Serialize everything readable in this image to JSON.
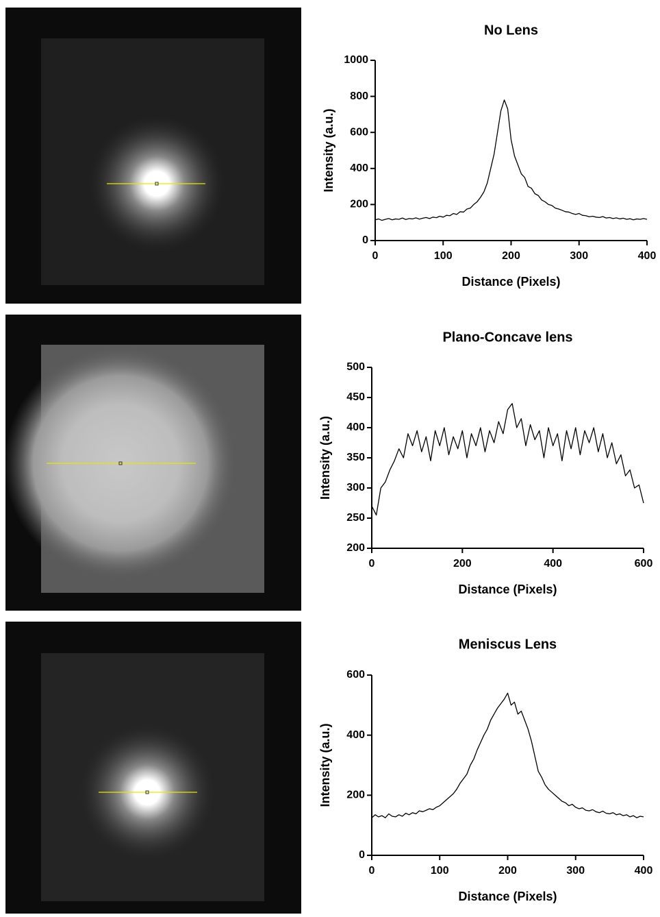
{
  "chart_data": [
    {
      "type": "line",
      "title": "No Lens",
      "x_label": "Distance (Pixels)",
      "y_label": "Intensity (a.u.)",
      "xlim": [
        0,
        400
      ],
      "ylim": [
        0,
        1000
      ],
      "xticks": [
        0,
        100,
        200,
        300,
        400
      ],
      "yticks": [
        0,
        200,
        400,
        600,
        800,
        1000
      ],
      "color": "#000000",
      "x": [
        0,
        5,
        10,
        15,
        20,
        25,
        30,
        35,
        40,
        45,
        50,
        55,
        60,
        65,
        70,
        75,
        80,
        85,
        90,
        95,
        100,
        105,
        110,
        115,
        120,
        125,
        130,
        135,
        140,
        145,
        150,
        155,
        160,
        165,
        170,
        175,
        180,
        185,
        190,
        195,
        200,
        205,
        210,
        215,
        220,
        225,
        230,
        235,
        240,
        245,
        250,
        255,
        260,
        265,
        270,
        275,
        280,
        285,
        290,
        295,
        300,
        305,
        310,
        315,
        320,
        325,
        330,
        335,
        340,
        345,
        350,
        355,
        360,
        365,
        370,
        375,
        380,
        385,
        390,
        395,
        400
      ],
      "values": [
        115,
        120,
        112,
        118,
        122,
        115,
        120,
        118,
        125,
        117,
        122,
        120,
        126,
        119,
        124,
        128,
        122,
        130,
        127,
        135,
        130,
        140,
        138,
        150,
        145,
        160,
        158,
        175,
        180,
        200,
        215,
        240,
        270,
        320,
        400,
        480,
        600,
        720,
        780,
        730,
        560,
        470,
        420,
        370,
        350,
        300,
        290,
        260,
        250,
        225,
        215,
        200,
        195,
        180,
        175,
        168,
        160,
        158,
        150,
        145,
        150,
        140,
        138,
        132,
        135,
        130,
        128,
        133,
        125,
        128,
        122,
        126,
        120,
        124,
        118,
        121,
        115,
        120,
        118,
        122,
        118
      ]
    },
    {
      "type": "line",
      "title": "Plano-Concave lens",
      "x_label": "Distance (Pixels)",
      "y_label": "Intensity (a.u.)",
      "xlim": [
        0,
        600
      ],
      "ylim": [
        200,
        500
      ],
      "xticks": [
        0,
        200,
        400,
        600
      ],
      "yticks": [
        200,
        250,
        300,
        350,
        400,
        450,
        500
      ],
      "color": "#000000",
      "x": [
        0,
        10,
        20,
        30,
        40,
        50,
        60,
        70,
        80,
        90,
        100,
        110,
        120,
        130,
        140,
        150,
        160,
        170,
        180,
        190,
        200,
        210,
        220,
        230,
        240,
        250,
        260,
        270,
        280,
        290,
        300,
        310,
        320,
        330,
        340,
        350,
        360,
        370,
        380,
        390,
        400,
        410,
        420,
        430,
        440,
        450,
        460,
        470,
        480,
        490,
        500,
        510,
        520,
        530,
        540,
        550,
        560,
        570,
        580,
        590,
        600
      ],
      "values": [
        270,
        255,
        300,
        310,
        330,
        345,
        365,
        350,
        390,
        370,
        395,
        360,
        385,
        345,
        395,
        370,
        400,
        355,
        385,
        365,
        395,
        350,
        390,
        370,
        400,
        360,
        395,
        375,
        410,
        390,
        430,
        440,
        400,
        415,
        370,
        405,
        380,
        395,
        350,
        400,
        370,
        390,
        345,
        395,
        365,
        400,
        355,
        395,
        375,
        400,
        360,
        390,
        350,
        375,
        340,
        355,
        320,
        330,
        300,
        305,
        275
      ]
    },
    {
      "type": "line",
      "title": "Meniscus Lens",
      "x_label": "Distance (Pixels)",
      "y_label": "Intensity (a.u.)",
      "xlim": [
        0,
        400
      ],
      "ylim": [
        0,
        600
      ],
      "xticks": [
        0,
        100,
        200,
        300,
        400
      ],
      "yticks": [
        0,
        200,
        400,
        600
      ],
      "color": "#000000",
      "x": [
        0,
        5,
        10,
        15,
        20,
        25,
        30,
        35,
        40,
        45,
        50,
        55,
        60,
        65,
        70,
        75,
        80,
        85,
        90,
        95,
        100,
        105,
        110,
        115,
        120,
        125,
        130,
        135,
        140,
        145,
        150,
        155,
        160,
        165,
        170,
        175,
        180,
        185,
        190,
        195,
        200,
        205,
        210,
        215,
        220,
        225,
        230,
        235,
        240,
        245,
        250,
        255,
        260,
        265,
        270,
        275,
        280,
        285,
        290,
        295,
        300,
        305,
        310,
        315,
        320,
        325,
        330,
        335,
        340,
        345,
        350,
        355,
        360,
        365,
        370,
        375,
        380,
        385,
        390,
        395,
        400
      ],
      "values": [
        125,
        135,
        128,
        132,
        125,
        138,
        130,
        128,
        135,
        130,
        140,
        135,
        142,
        138,
        148,
        145,
        150,
        155,
        152,
        160,
        165,
        175,
        185,
        195,
        205,
        220,
        240,
        255,
        270,
        300,
        320,
        350,
        375,
        400,
        420,
        450,
        470,
        490,
        505,
        520,
        540,
        500,
        510,
        470,
        480,
        450,
        420,
        380,
        330,
        280,
        260,
        235,
        220,
        210,
        200,
        190,
        180,
        175,
        165,
        170,
        160,
        155,
        158,
        150,
        148,
        152,
        145,
        142,
        147,
        140,
        138,
        142,
        135,
        138,
        132,
        135,
        128,
        132,
        125,
        130,
        128
      ]
    }
  ]
}
